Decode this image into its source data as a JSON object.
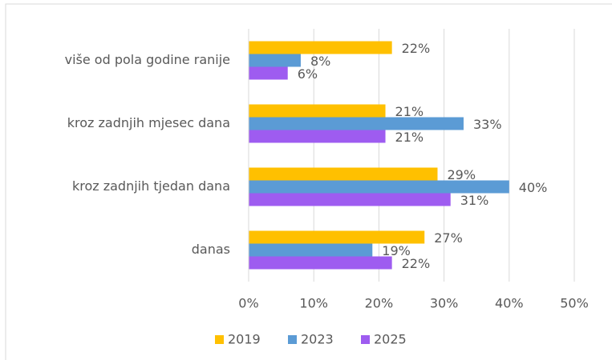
{
  "chart_data": {
    "type": "bar",
    "orientation": "horizontal",
    "categories": [
      "više od pola godine ranije",
      "kroz zadnjih mjesec dana",
      "kroz zadnjih tjedan dana",
      "danas"
    ],
    "series": [
      {
        "name": "2019",
        "color": "#ffc000",
        "values": [
          22,
          21,
          29,
          27
        ],
        "value_labels": [
          "22%",
          "21%",
          "29%",
          "27%"
        ]
      },
      {
        "name": "2023",
        "color": "#5b9bd5",
        "values": [
          8,
          33,
          40,
          19
        ],
        "value_labels": [
          "8%",
          "33%",
          "40%",
          "19%"
        ]
      },
      {
        "name": "2025",
        "color": "#9e5cf0",
        "values": [
          6,
          21,
          31,
          22
        ],
        "value_labels": [
          "6%",
          "21%",
          "31%",
          "22%"
        ]
      }
    ],
    "xlim": [
      0,
      50
    ],
    "xticks": [
      {
        "value": 0,
        "label": "0%"
      },
      {
        "value": 10,
        "label": "10%"
      },
      {
        "value": 20,
        "label": "20%"
      },
      {
        "value": 30,
        "label": "30%"
      },
      {
        "value": 40,
        "label": "40%"
      },
      {
        "value": 50,
        "label": "50%"
      }
    ],
    "grid": true,
    "legend": "bottom"
  }
}
